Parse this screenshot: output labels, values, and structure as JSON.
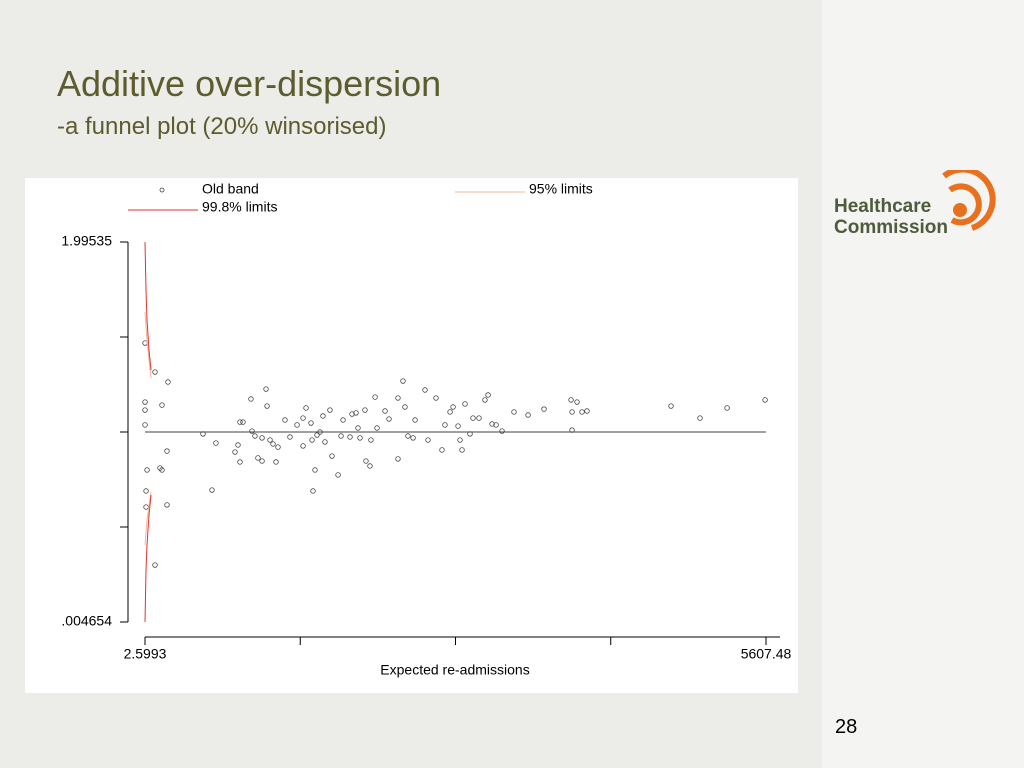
{
  "title": "Additive over-dispersion",
  "subtitle": "-a funnel plot (20% winsorised)",
  "logo": [
    "Healthcare",
    "Commission"
  ],
  "page_number": "28",
  "chart_data": {
    "type": "scatter",
    "x_label": "Expected re-admissions",
    "xlim": [
      2.5993,
      5607.48
    ],
    "xticks": [
      2.5993,
      {
        "value": 1403.8,
        "label": null
      },
      {
        "value": 2805.0,
        "label": null
      },
      {
        "value": 4206.2,
        "label": null
      },
      5607.48
    ],
    "ylim": [
      0.004654,
      1.99535
    ],
    "yticks": [
      {
        "value": 0.004654,
        "label": ".004654"
      },
      {
        "value": 0.502327,
        "label": null
      },
      {
        "value": 1.0,
        "label": null
      },
      {
        "value": 1.497676,
        "label": null
      },
      1.99535
    ],
    "reference_line": 1,
    "series": [
      {
        "name": "Old band",
        "type": "scatter",
        "color": "#444444",
        "x": [
          3,
          93,
          210,
          3,
          156,
          3,
          3,
          201,
          138,
          21,
          156,
          12,
          12,
          201,
          93,
          526,
          643,
          607,
          860,
          887,
          959,
          1095,
          1104,
          968,
          995,
          1059,
          842,
          815,
          860,
          1022,
          1059,
          1131,
          1158,
          1185,
          1203,
          1266,
          1311,
          1375,
          1429,
          1429,
          1456,
          1501,
          1510,
          1519,
          1537,
          1555,
          1582,
          1609,
          1627,
          1672,
          1690,
          1745,
          1772,
          1790,
          1853,
          1871,
          1907,
          1925,
          1943,
          1988,
          1997,
          2033,
          2042,
          2079,
          2097,
          2169,
          2205,
          2286,
          2286,
          2331,
          2349,
          2376,
          2422,
          2440,
          2530,
          2557,
          2629,
          2683,
          2710,
          2756,
          2783,
          2828,
          2846,
          2864,
          2891,
          2936,
          2963,
          3017,
          3071,
          3099,
          3135,
          3171,
          3225,
          3333,
          3460,
          3604,
          3848,
          3857,
          3857,
          3902,
          3947,
          3992,
          4750,
          5012,
          5256,
          5599
        ],
        "values": [
          1.466,
          1.314,
          1.262,
          1.157,
          1.141,
          1.115,
          1.037,
          0.9,
          0.811,
          0.801,
          0.801,
          0.691,
          0.607,
          0.618,
          0.303,
          0.99,
          0.942,
          0.696,
          1.052,
          1.052,
          1.173,
          1.225,
          1.136,
          1.005,
          0.979,
          0.969,
          0.932,
          0.895,
          0.843,
          0.864,
          0.848,
          0.958,
          0.937,
          0.843,
          0.921,
          1.063,
          0.974,
          1.037,
          1.073,
          0.927,
          1.126,
          1.047,
          0.958,
          0.691,
          0.801,
          0.984,
          1.0,
          1.084,
          0.948,
          1.115,
          0.874,
          0.775,
          0.979,
          1.063,
          0.974,
          1.094,
          1.1,
          1.021,
          0.969,
          1.115,
          0.848,
          0.822,
          0.958,
          1.183,
          1.021,
          1.11,
          1.068,
          1.178,
          0.859,
          1.267,
          1.131,
          0.979,
          0.969,
          1.063,
          1.22,
          0.958,
          1.178,
          0.906,
          1.037,
          1.105,
          1.131,
          1.031,
          0.958,
          0.906,
          1.147,
          0.99,
          1.073,
          1.073,
          1.168,
          1.194,
          1.042,
          1.037,
          1.005,
          1.105,
          1.089,
          1.12,
          1.168,
          1.105,
          1.01,
          1.157,
          1.105,
          1.11,
          1.136,
          1.073,
          1.126,
          1.168
        ]
      },
      {
        "name": "95% limits",
        "type": "line",
        "color": "#f2b79a",
        "x": [
          2.6,
          20.6,
          38.7,
          56.8,
          null,
          2.6,
          20.6,
          38.7,
          56.8
        ],
        "values": [
          1.629,
          1.482,
          1.377,
          1.283,
          null,
          0.408,
          0.539,
          0.618,
          0.686
        ]
      },
      {
        "name": "99.8% limits",
        "type": "line",
        "color": "#e0332b",
        "x": [
          2.6,
          11.6,
          20.6,
          38.7,
          56.8,
          null,
          2.6,
          11.6,
          20.6,
          38.7,
          56.8
        ],
        "values": [
          1.995,
          1.744,
          1.587,
          1.43,
          1.325,
          null,
          0.005,
          0.277,
          0.408,
          0.565,
          0.67
        ]
      }
    ]
  }
}
